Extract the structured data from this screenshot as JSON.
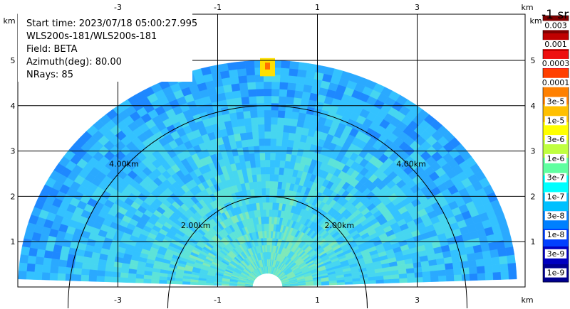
{
  "header": {
    "start_time_label": "Start time: 2023/07/18 05:00:27.995",
    "instrument_label": "WLS200s-181/WLS200s-181",
    "field_label": "Field: BETA",
    "azimuth_label": "Azimuth(deg): 80.00",
    "nrays_label": "NRays: 85"
  },
  "chart_data": {
    "type": "heatmap",
    "subtype": "RHI range-height scan",
    "field": "BETA",
    "azimuth_deg": 80.0,
    "n_rays": 85,
    "x_unit_label": "km",
    "y_unit_label": "km",
    "x_ticks": [
      -3,
      -1,
      1,
      3
    ],
    "y_ticks": [
      1,
      2,
      3,
      4,
      5
    ],
    "xlim": [
      -5.0,
      5.0
    ],
    "ylim": [
      0,
      5.45
    ],
    "max_range_km": 5.0,
    "min_range_km": 0.3,
    "elevation_range_deg": [
      2,
      178
    ],
    "range_rings_km": [
      2.0,
      4.0
    ],
    "range_ring_labels": [
      "2.00km",
      "4.00km"
    ],
    "grid": true,
    "colorbar": {
      "title": "-1 sr",
      "labels": [
        "0.003",
        "0.001",
        "0.0003",
        "0.0001",
        "3e-5",
        "1e-5",
        "3e-6",
        "1e-6",
        "3e-7",
        "1e-7",
        "3e-8",
        "1e-8",
        "3e-9",
        "1e-9"
      ],
      "colors": [
        "#800000",
        "#c00000",
        "#ee1010",
        "#ff4000",
        "#ff8000",
        "#ffc000",
        "#ffff00",
        "#c0ff40",
        "#60ffa0",
        "#00ffff",
        "#00c0ff",
        "#0080ff",
        "#0040ff",
        "#0000c0",
        "#000090"
      ]
    },
    "background_color": "#2aa9ff"
  }
}
